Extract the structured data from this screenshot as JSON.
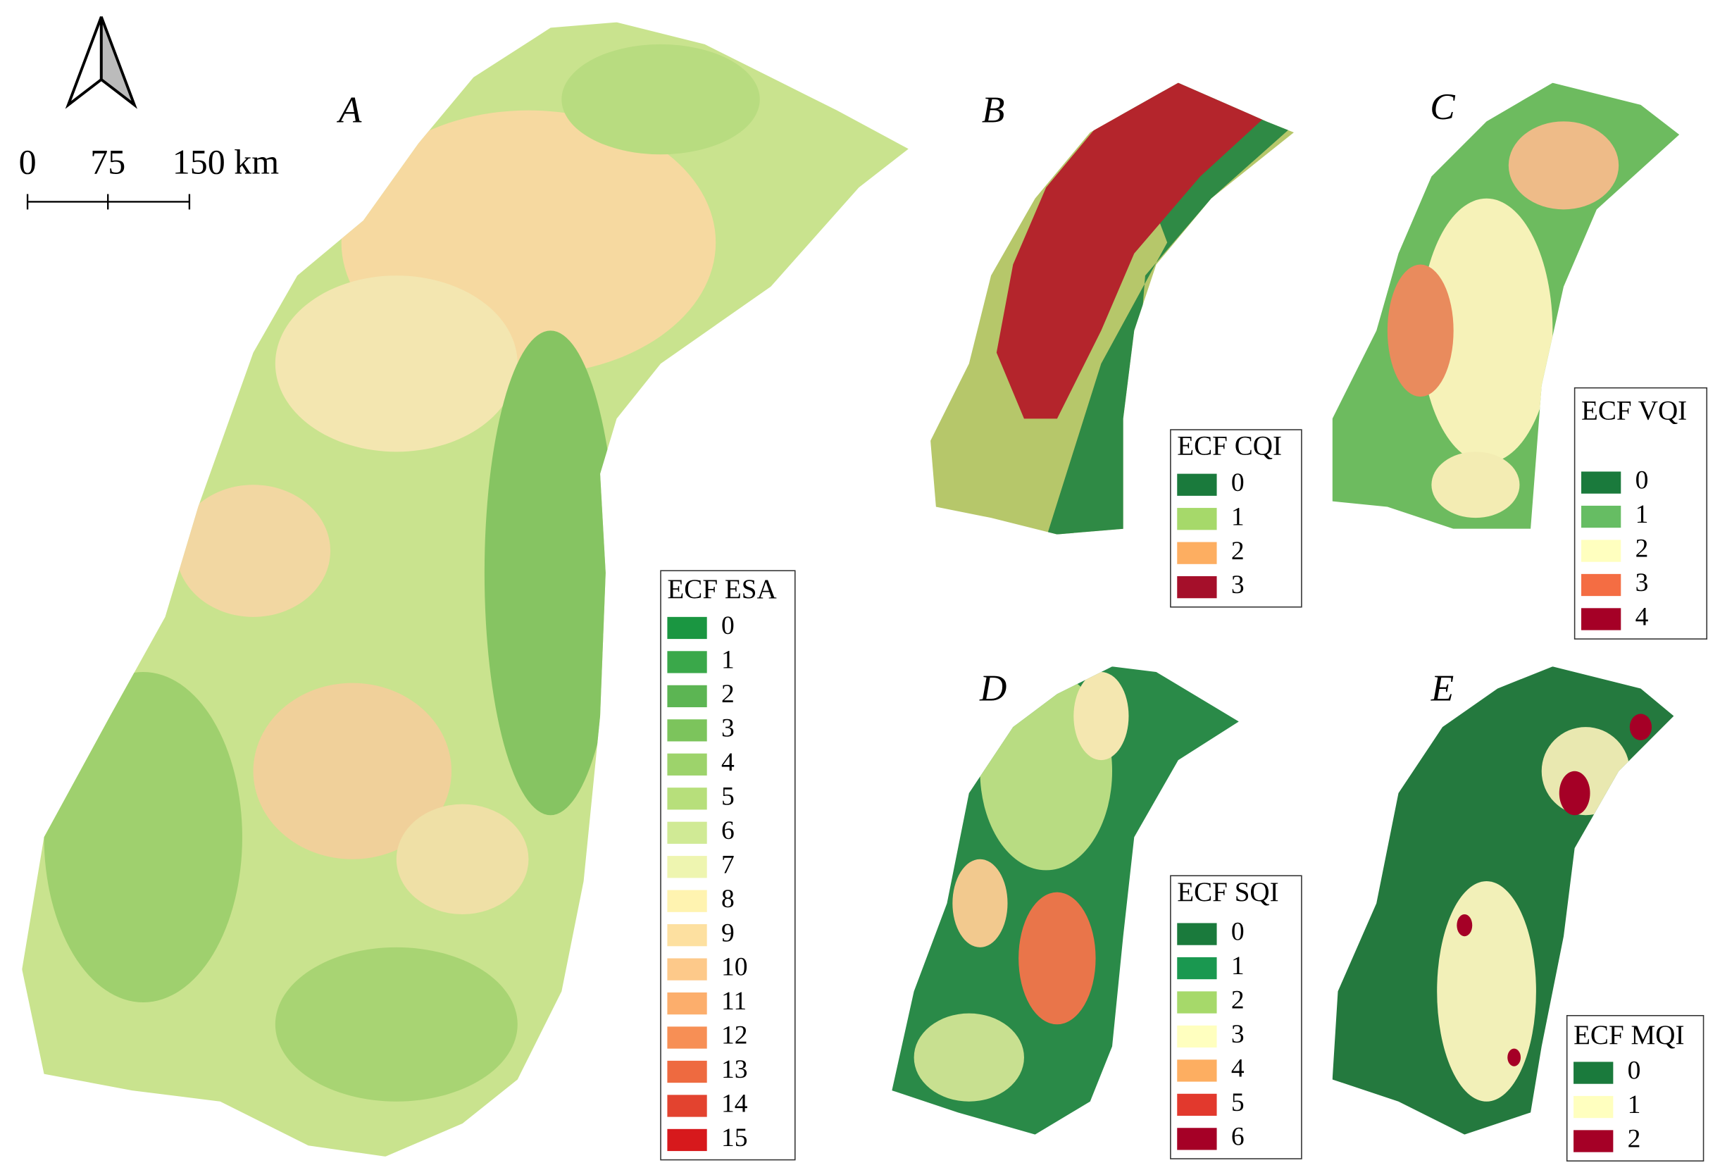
{
  "scale_bar": {
    "labels": [
      "0",
      "75",
      "150 km"
    ]
  },
  "panels": [
    {
      "label": "A",
      "legend_title": "ECF ESA",
      "classes": [
        {
          "label": "0",
          "color": "#1a9641"
        },
        {
          "label": "1",
          "color": "#3aa84a"
        },
        {
          "label": "2",
          "color": "#5cb553"
        },
        {
          "label": "3",
          "color": "#7cc45c"
        },
        {
          "label": "4",
          "color": "#9dd36b"
        },
        {
          "label": "5",
          "color": "#b7df7b"
        },
        {
          "label": "6",
          "color": "#d0ea95"
        },
        {
          "label": "7",
          "color": "#eef5b0"
        },
        {
          "label": "8",
          "color": "#fff3b0"
        },
        {
          "label": "9",
          "color": "#fde0a0"
        },
        {
          "label": "10",
          "color": "#fdc98a"
        },
        {
          "label": "11",
          "color": "#fcae6c"
        },
        {
          "label": "12",
          "color": "#f78f55"
        },
        {
          "label": "13",
          "color": "#ee6a40"
        },
        {
          "label": "14",
          "color": "#e3432f"
        },
        {
          "label": "15",
          "color": "#d7191c"
        }
      ]
    },
    {
      "label": "B",
      "legend_title": "ECF CQI",
      "classes": [
        {
          "label": "0",
          "color": "#1a7a3c"
        },
        {
          "label": "1",
          "color": "#a6d96a"
        },
        {
          "label": "2",
          "color": "#fdae61"
        },
        {
          "label": "3",
          "color": "#a50f2a"
        }
      ]
    },
    {
      "label": "C",
      "legend_title": "ECF VQI",
      "classes": [
        {
          "label": "0",
          "color": "#1a7a3c"
        },
        {
          "label": "1",
          "color": "#66bd63"
        },
        {
          "label": "2",
          "color": "#ffffbf"
        },
        {
          "label": "3",
          "color": "#f46d43"
        },
        {
          "label": "4",
          "color": "#a50026"
        }
      ]
    },
    {
      "label": "D",
      "legend_title": "ECF SQI",
      "classes": [
        {
          "label": "0",
          "color": "#1a7a3c"
        },
        {
          "label": "1",
          "color": "#1a9850"
        },
        {
          "label": "2",
          "color": "#a6d96a"
        },
        {
          "label": "3",
          "color": "#ffffbf"
        },
        {
          "label": "4",
          "color": "#fdae61"
        },
        {
          "label": "5",
          "color": "#e2392d"
        },
        {
          "label": "6",
          "color": "#a50026"
        }
      ]
    },
    {
      "label": "E",
      "legend_title": "ECF MQI",
      "classes": [
        {
          "label": "0",
          "color": "#1a7a3c"
        },
        {
          "label": "1",
          "color": "#ffffbf"
        },
        {
          "label": "2",
          "color": "#a50026"
        }
      ]
    }
  ]
}
